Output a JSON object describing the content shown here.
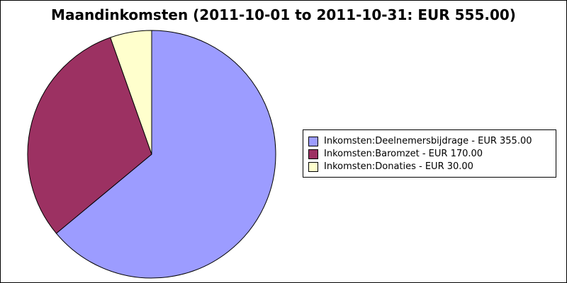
{
  "chart_data": {
    "type": "pie",
    "title": "Maandinkomsten (2011-10-01 to 2011-10-31: EUR 555.00)",
    "slices": [
      {
        "label": "Inkomsten:Deelnemersbijdrage - EUR 355.00",
        "value": 355.0,
        "color": "#9c9cff"
      },
      {
        "label": "Inkomsten:Baromzet - EUR 170.00",
        "value": 170.0,
        "color": "#9c3162"
      },
      {
        "label": "Inkomsten:Donaties - EUR 30.00",
        "value": 30.0,
        "color": "#ffffcd"
      }
    ],
    "legend_position": "right"
  }
}
